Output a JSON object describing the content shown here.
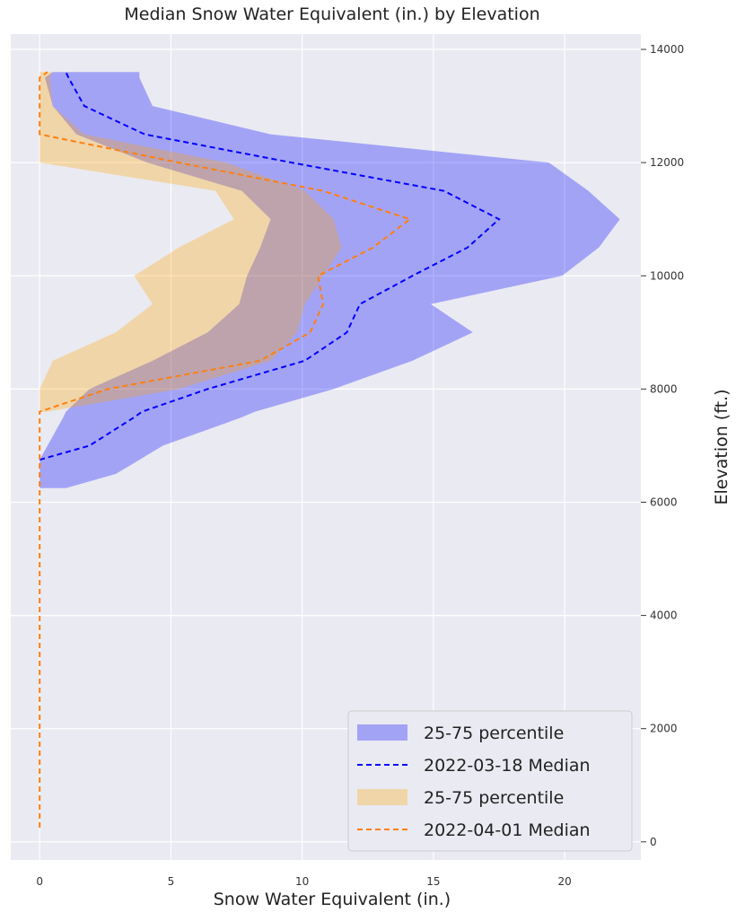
{
  "chart_data": {
    "type": "line",
    "title": "Median Snow Water Equivalent (in.) by Elevation",
    "x_label": "Snow Water Equivalent (in.)",
    "y_label": "Elevation (ft.)",
    "y": [
      250,
      6250,
      6500,
      6750,
      7000,
      7500,
      7600,
      8000,
      8500,
      9000,
      9500,
      10000,
      10500,
      11000,
      11500,
      12000,
      12500,
      13000,
      13500,
      13600
    ],
    "series": [
      {
        "name": "25-75 percentile",
        "color": "#0000ff",
        "alpha": 0.3,
        "low": [
          null,
          0,
          0,
          0,
          0.3,
          0.9,
          1.0,
          1.9,
          4.3,
          6.4,
          7.6,
          7.9,
          8.4,
          8.8,
          7.7,
          4.1,
          1.4,
          0.5,
          0.2,
          0.5
        ],
        "high": [
          null,
          1.0,
          2.9,
          3.8,
          4.7,
          7.7,
          8.2,
          11.2,
          14.2,
          16.5,
          14.9,
          19.9,
          21.3,
          22.1,
          20.9,
          19.4,
          8.8,
          4.3,
          3.8,
          3.8
        ]
      },
      {
        "name": "2022-03-18 Median",
        "color": "#0000ff",
        "dashed": true,
        "values": [
          null,
          null,
          null,
          0,
          1.9,
          3.6,
          3.9,
          6.4,
          10.1,
          11.7,
          12.2,
          14.2,
          16.3,
          17.5,
          15.4,
          9.6,
          4.0,
          1.7,
          1.1,
          1.0
        ]
      },
      {
        "name": "25-75 percentile",
        "color": "#ffa500",
        "alpha": 0.3,
        "low": [
          null,
          null,
          null,
          null,
          null,
          null,
          0,
          0,
          0.5,
          2.9,
          4.3,
          3.6,
          5.3,
          7.4,
          6.7,
          0,
          0,
          0,
          0,
          0
        ],
        "high": [
          null,
          null,
          null,
          null,
          null,
          null,
          0.3,
          5.3,
          8.8,
          9.8,
          10.1,
          10.8,
          11.5,
          11.2,
          10.1,
          7.1,
          1.7,
          0.5,
          0.4,
          0.5
        ]
      },
      {
        "name": "2022-04-01 Median",
        "color": "#ff7f0e",
        "dashed": true,
        "values": [
          0,
          0,
          0,
          0,
          0,
          0,
          0,
          2.6,
          8.4,
          10.3,
          10.8,
          10.6,
          12.7,
          14.1,
          10.8,
          5.3,
          0,
          0,
          0,
          0.3
        ]
      }
    ],
    "xlim": [
      -1.1,
      22.9
    ],
    "xticks": [
      0,
      5,
      10,
      15,
      20
    ],
    "ylim": [
      -320,
      14270
    ],
    "yticks": [
      0,
      2000,
      4000,
      6000,
      8000,
      10000,
      12000,
      14000
    ],
    "grid": true,
    "legend": "lower right"
  }
}
